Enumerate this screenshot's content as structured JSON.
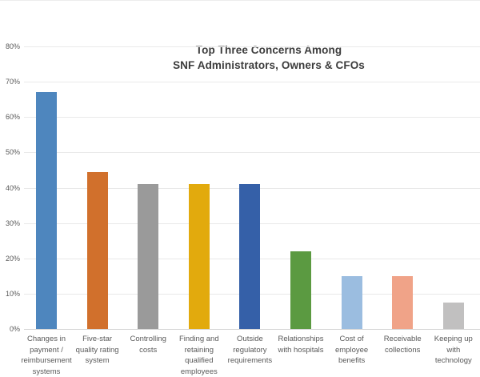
{
  "chart_data": {
    "type": "bar",
    "title_line1": "Top Three Concerns Among",
    "title_line2": "SNF Administrators, Owners & CFOs",
    "xlabel": "",
    "ylabel": "",
    "ylim": [
      0,
      80
    ],
    "ytick_step": 10,
    "yticks": [
      "0%",
      "10%",
      "20%",
      "30%",
      "40%",
      "50%",
      "60%",
      "70%",
      "80%"
    ],
    "grid": true,
    "legend": false,
    "categories": [
      "Changes in payment / reimbursement systems",
      "Five-star quality rating system",
      "Controlling costs",
      "Finding and retaining qualified employees",
      "Outside regulatory requirements",
      "Relationships with hospitals",
      "Cost of employee benefits",
      "Receivable collections",
      "Keeping up with technology"
    ],
    "label_lines": [
      [
        "Changes in",
        "payment /",
        "reimbursement",
        "systems"
      ],
      [
        "Five-star",
        "quality rating",
        "system"
      ],
      [
        "Controlling",
        "costs"
      ],
      [
        "Finding and",
        "retaining",
        "qualified",
        "employees"
      ],
      [
        "Outside",
        "regulatory",
        "requirements"
      ],
      [
        "Relationships",
        "with hospitals"
      ],
      [
        "Cost of",
        "employee",
        "benefits"
      ],
      [
        "Receivable",
        "collections"
      ],
      [
        "Keeping up",
        "with",
        "technology"
      ]
    ],
    "values": [
      67,
      44.5,
      41,
      41,
      41,
      22,
      15,
      15,
      7.5
    ],
    "bar_colors": [
      "#4e86be",
      "#d1702c",
      "#9a9a9a",
      "#e2aa0d",
      "#3560a8",
      "#5b9a41",
      "#9bbde0",
      "#f0a388",
      "#c1c0c0"
    ],
    "colors": {
      "title_text": "#3c3c3c",
      "axis_text": "#595959",
      "gridline": "#e9e9e9",
      "zero_line": "#d6d6d6",
      "background": "#ffffff"
    }
  }
}
